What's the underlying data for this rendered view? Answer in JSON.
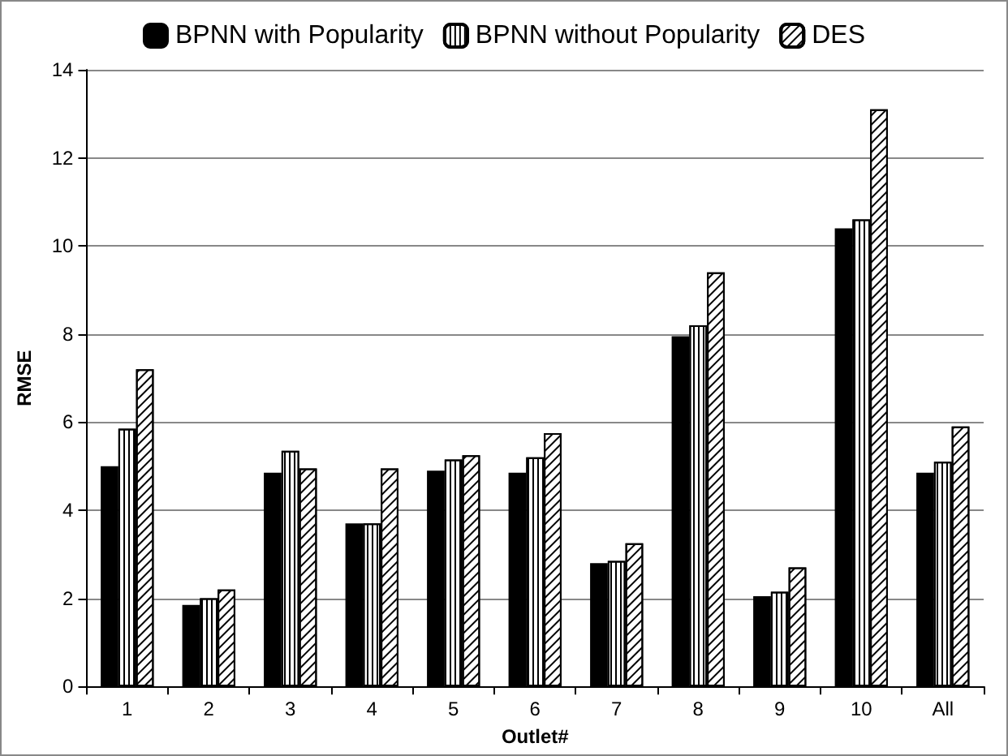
{
  "chart_data": {
    "type": "bar",
    "xlabel": "Outlet#",
    "ylabel": "RMSE",
    "categories": [
      "1",
      "2",
      "3",
      "4",
      "5",
      "6",
      "7",
      "8",
      "9",
      "10",
      "All"
    ],
    "series": [
      {
        "name": "BPNN with Popularity",
        "color": "#000000",
        "values": [
          5.0,
          1.85,
          4.85,
          3.7,
          4.9,
          4.85,
          2.8,
          7.95,
          2.05,
          10.4,
          4.85
        ]
      },
      {
        "name": "BPNN without Popularity",
        "color": "#ffffff",
        "values": [
          5.85,
          2.0,
          5.35,
          3.7,
          5.15,
          5.2,
          2.85,
          8.2,
          2.15,
          10.6,
          5.1
        ]
      },
      {
        "name": "DES",
        "color": "#ffffff",
        "values": [
          7.2,
          2.2,
          4.95,
          4.95,
          5.25,
          5.75,
          3.25,
          9.4,
          2.7,
          13.1,
          5.9
        ]
      }
    ],
    "ylim": [
      0,
      14
    ],
    "yticks": [
      0,
      2,
      4,
      6,
      8,
      10,
      12,
      14
    ],
    "grid": "y",
    "legend": "top"
  }
}
